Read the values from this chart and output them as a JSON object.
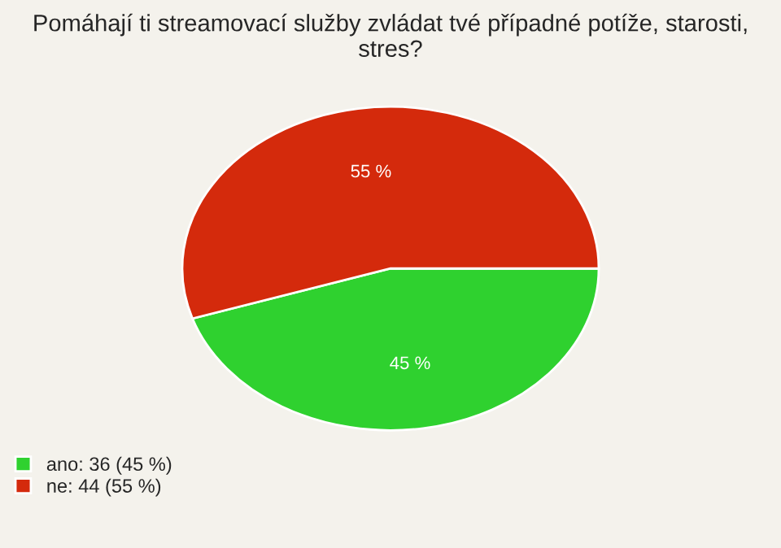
{
  "chart_data": {
    "type": "pie",
    "title": "Pomáhají ti streamovací služby zvládat tvé případné potíže, starosti, stres?",
    "categories": [
      "ano: 36 (45 %)",
      "ne: 44 (55 %)"
    ],
    "values": [
      45,
      55
    ],
    "value_labels": [
      "45 %",
      "55 %"
    ],
    "colors": [
      "#2fd12f",
      "#d42a0c"
    ],
    "legend": "bottom left"
  }
}
